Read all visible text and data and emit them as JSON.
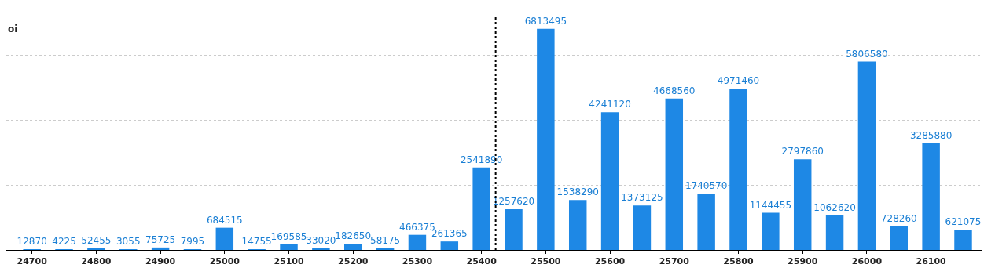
{
  "chart_data": {
    "type": "bar",
    "ylabel": "oi",
    "x": [
      24700,
      24750,
      24800,
      24850,
      24900,
      24950,
      25000,
      25050,
      25100,
      25150,
      25200,
      25250,
      25300,
      25350,
      25400,
      25450,
      25500,
      25550,
      25600,
      25650,
      25700,
      25750,
      25800,
      25850,
      25900,
      25950,
      26000,
      26050,
      26100,
      26150
    ],
    "values": [
      12870,
      4225,
      52455,
      3055,
      75725,
      7995,
      684515,
      14755,
      169585,
      33020,
      182650,
      58175,
      466375,
      261365,
      2541890,
      1257620,
      6813495,
      1538290,
      4241120,
      1373125,
      4668560,
      1740570,
      4971460,
      1144455,
      2797860,
      1062620,
      5806580,
      728260,
      3285880,
      621075
    ],
    "color": "#1e88e5",
    "data_labels": true,
    "xlim": [
      24660,
      26180
    ],
    "xticks": [
      24700,
      24800,
      24900,
      25000,
      25100,
      25200,
      25300,
      25400,
      25500,
      25600,
      25700,
      25800,
      25900,
      26000,
      26100
    ],
    "yticks": [
      {
        "value": 0,
        "label": null
      },
      {
        "value": 2000000,
        "label": null
      },
      {
        "value": 4000000,
        "label": null
      },
      {
        "value": 6000000,
        "label": null
      }
    ],
    "tick_labels": "x",
    "grid": "y",
    "ref_lines": [
      {
        "axis": "x",
        "value": 25422,
        "line_style": "dotted",
        "color": "#000000"
      }
    ]
  }
}
